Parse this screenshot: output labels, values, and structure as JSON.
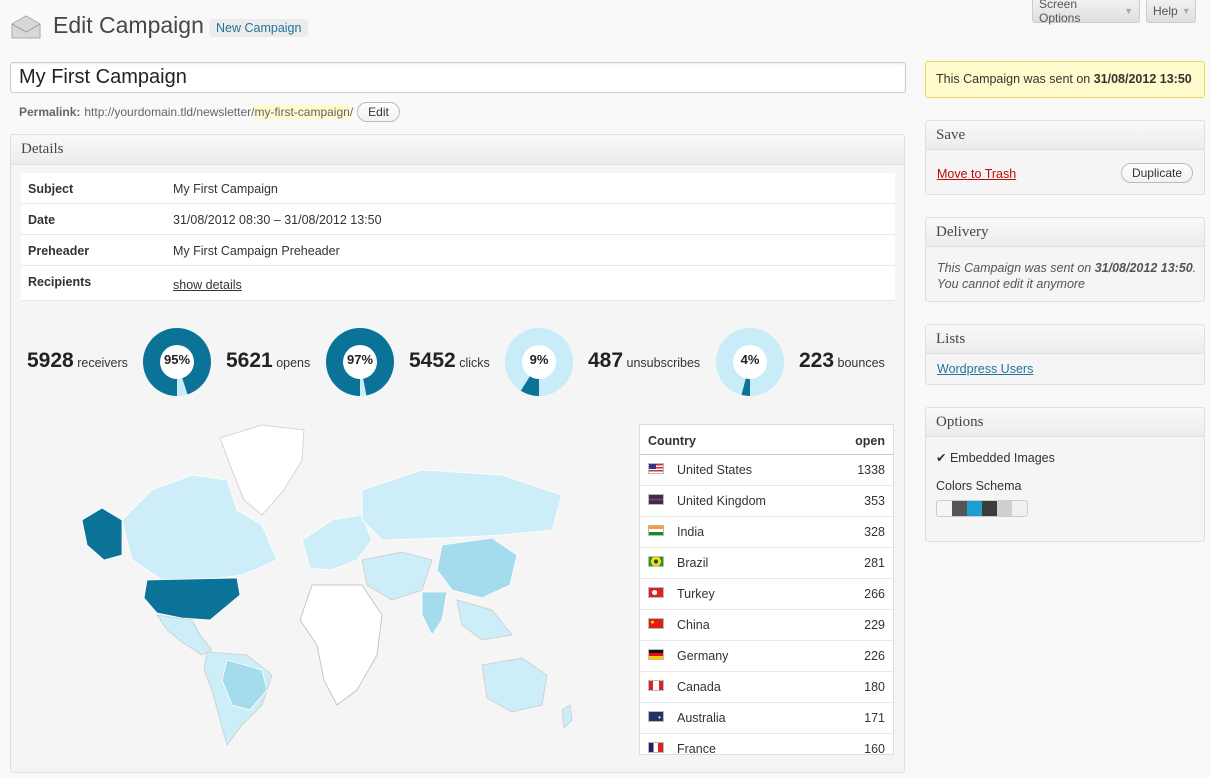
{
  "header": {
    "title": "Edit Campaign",
    "add_new": "New Campaign",
    "screen_options": "Screen Options",
    "help": "Help"
  },
  "post": {
    "title": "My First Campaign",
    "permalink_label": "Permalink:",
    "permalink_base": "http://yourdomain.tld/newsletter/",
    "permalink_slug": "my-first-campaign",
    "permalink_end": "/",
    "edit_label": "Edit"
  },
  "details": {
    "heading": "Details",
    "rows": [
      {
        "label": "Subject",
        "value": "My First Campaign"
      },
      {
        "label": "Date",
        "value": "31/08/2012 08:30 – 31/08/2012 13:50"
      },
      {
        "label": "Preheader",
        "value": "My First Campaign Preheader"
      },
      {
        "label": "Recipients",
        "value": "show details"
      }
    ]
  },
  "stats": {
    "receivers": {
      "number": "5928",
      "label": "receivers"
    },
    "opens": {
      "number": "5621",
      "label": "opens",
      "percent": 95,
      "percent_label": "95%"
    },
    "clicks": {
      "number": "5452",
      "label": "clicks",
      "percent": 97,
      "percent_label": "97%"
    },
    "unsubscribes": {
      "number": "487",
      "label": "unsubscribes",
      "percent": 9,
      "percent_label": "9%"
    },
    "bounces": {
      "number": "223",
      "label": "bounces",
      "percent": 4,
      "percent_label": "4%"
    }
  },
  "countries": {
    "col_country": "Country",
    "col_open": "open",
    "rows": [
      {
        "name": "United States",
        "open": "1338",
        "flag": "us-flag-icon"
      },
      {
        "name": "United Kingdom",
        "open": "353",
        "flag": "uk-flag-icon"
      },
      {
        "name": "India",
        "open": "328",
        "flag": "india-flag-icon"
      },
      {
        "name": "Brazil",
        "open": "281",
        "flag": "brazil-flag-icon"
      },
      {
        "name": "Turkey",
        "open": "266",
        "flag": "turkey-flag-icon"
      },
      {
        "name": "China",
        "open": "229",
        "flag": "china-flag-icon"
      },
      {
        "name": "Germany",
        "open": "226",
        "flag": "germany-flag-icon"
      },
      {
        "name": "Canada",
        "open": "180",
        "flag": "canada-flag-icon"
      },
      {
        "name": "Australia",
        "open": "171",
        "flag": "australia-flag-icon"
      },
      {
        "name": "France",
        "open": "160",
        "flag": "france-flag-icon"
      }
    ]
  },
  "sidebar": {
    "notice_prefix": "This Campaign was sent on ",
    "notice_date": "31/08/2012 13:50",
    "save_heading": "Save",
    "move_to_trash": "Move to Trash",
    "duplicate": "Duplicate",
    "delivery_heading": "Delivery",
    "delivery_prefix": "This Campaign was sent on ",
    "delivery_date": "31/08/2012 13:50",
    "delivery_suffix": ".",
    "delivery_line2": "You cannot edit it anymore",
    "lists_heading": "Lists",
    "lists_item": "Wordpress Users",
    "options_heading": "Options",
    "embedded_images": "✔ Embedded Images",
    "colors_schema": "Colors Schema",
    "swatch_colors": [
      "#f5f5f5",
      "#555555",
      "#1e9ecf",
      "#3b3b3b",
      "#cfcfcf",
      "#f0f0f0"
    ]
  },
  "colors": {
    "donut_dark": "#0a7397",
    "donut_light": "#c8ecf8",
    "map_high": "#0a7397",
    "map_mid": "#a4dced",
    "map_low": "#cdeef8",
    "map_none": "#ffffff"
  }
}
